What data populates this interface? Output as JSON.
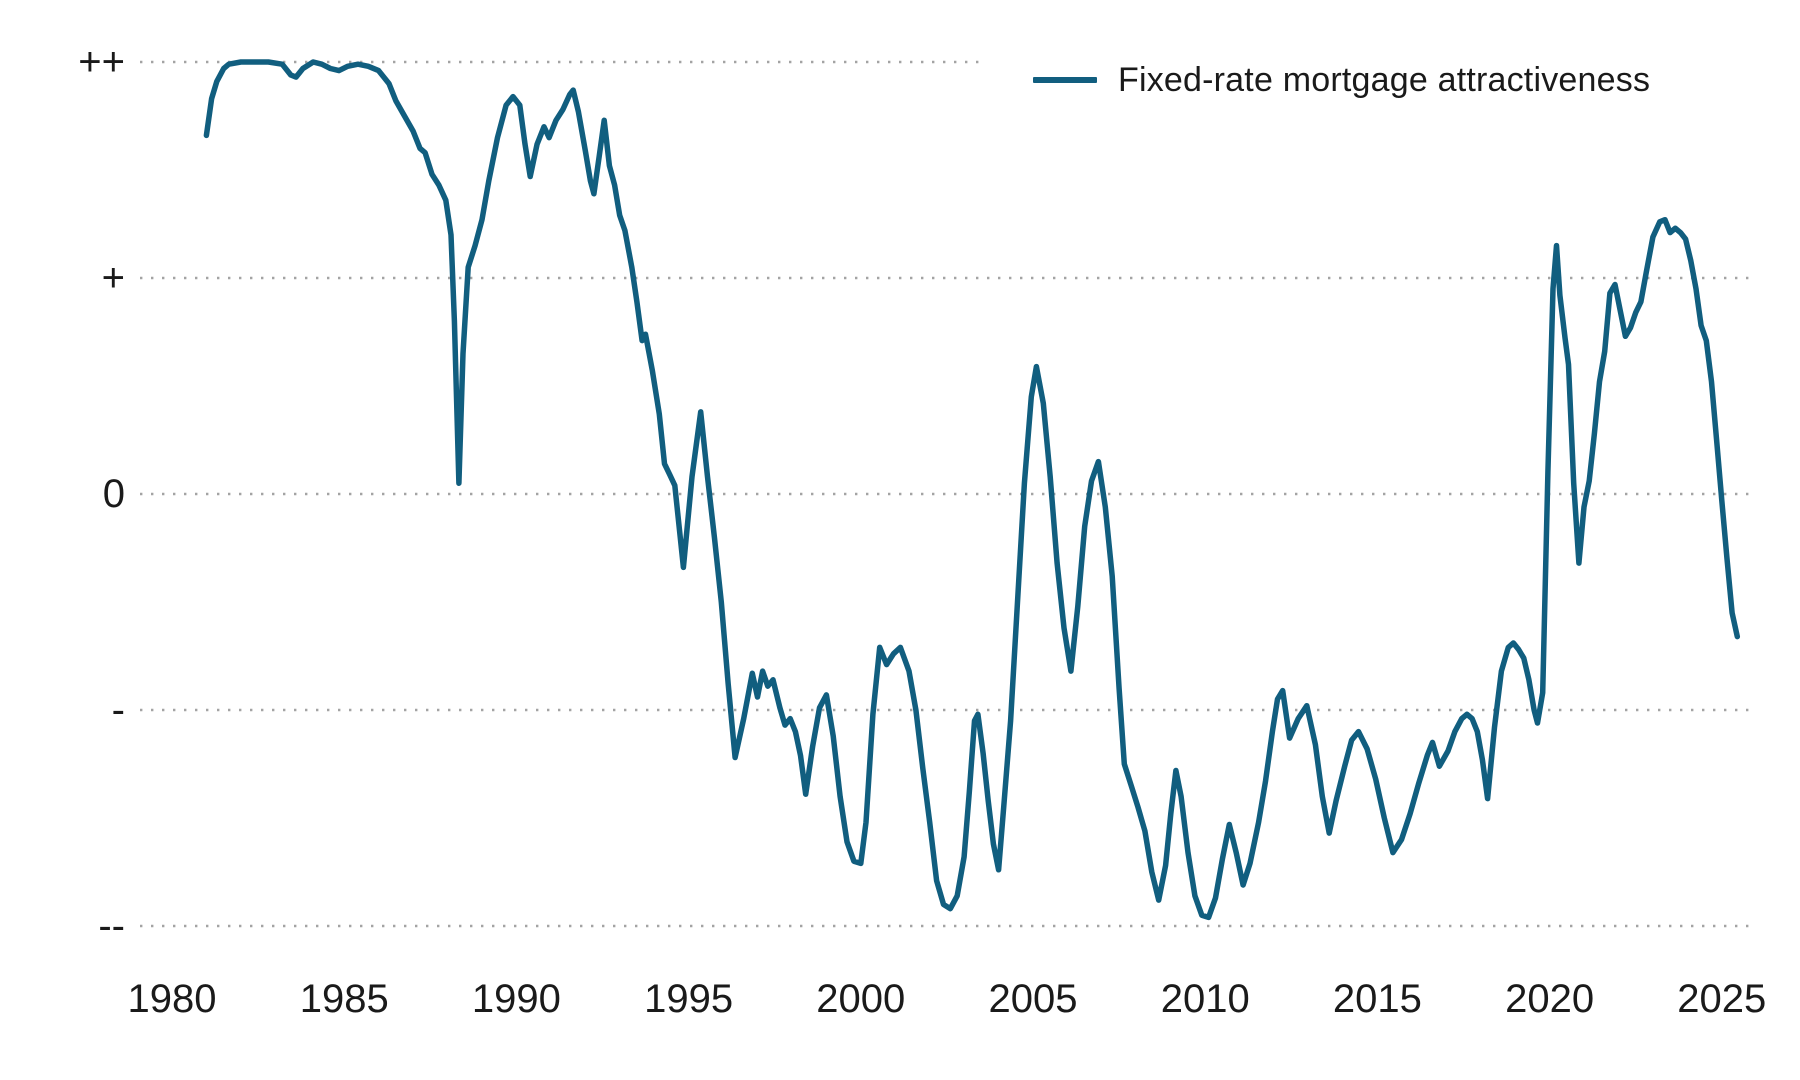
{
  "chart": {
    "legend": {
      "label": "Fixed-rate mortgage attractiveness"
    },
    "colors": {
      "line": "#115e7f",
      "grid": "#a3a3a3",
      "text": "#1a1a1a",
      "background": "#ffffff"
    }
  },
  "chart_data": {
    "type": "line",
    "title": "",
    "xlabel": "",
    "ylabel": "",
    "grid": "dotted horizontal gridlines",
    "legend_position": "top-right",
    "x_axis": {
      "ticks": [
        1980,
        1985,
        1990,
        1995,
        2000,
        2005,
        2010,
        2015,
        2020,
        2025
      ],
      "range": [
        1979.1,
        2026.1
      ]
    },
    "y_axis": {
      "type": "qualitative",
      "labels": [
        {
          "text": "++",
          "value": 2
        },
        {
          "text": "+",
          "value": 1
        },
        {
          "text": "0",
          "value": 0
        },
        {
          "text": "-",
          "value": -1
        },
        {
          "text": "--",
          "value": -2
        }
      ],
      "range": [
        -2.4,
        2.3
      ]
    },
    "series": [
      {
        "name": "Fixed-rate mortgage attractiveness",
        "color": "#115e7f",
        "points": [
          [
            1981.0,
            1.66
          ],
          [
            1981.15,
            1.83
          ],
          [
            1981.3,
            1.91
          ],
          [
            1981.5,
            1.97
          ],
          [
            1981.65,
            1.99
          ],
          [
            1982.0,
            2.0
          ],
          [
            1982.4,
            2.0
          ],
          [
            1982.8,
            2.0
          ],
          [
            1983.2,
            1.99
          ],
          [
            1983.45,
            1.94
          ],
          [
            1983.6,
            1.93
          ],
          [
            1983.8,
            1.97
          ],
          [
            1984.1,
            2.0
          ],
          [
            1984.35,
            1.99
          ],
          [
            1984.6,
            1.97
          ],
          [
            1984.85,
            1.96
          ],
          [
            1985.1,
            1.98
          ],
          [
            1985.4,
            1.99
          ],
          [
            1985.7,
            1.98
          ],
          [
            1986.0,
            1.96
          ],
          [
            1986.3,
            1.9
          ],
          [
            1986.5,
            1.82
          ],
          [
            1986.75,
            1.75
          ],
          [
            1987.0,
            1.68
          ],
          [
            1987.2,
            1.6
          ],
          [
            1987.35,
            1.58
          ],
          [
            1987.55,
            1.48
          ],
          [
            1987.75,
            1.43
          ],
          [
            1987.95,
            1.36
          ],
          [
            1988.1,
            1.2
          ],
          [
            1988.2,
            0.8
          ],
          [
            1988.33,
            0.05
          ],
          [
            1988.45,
            0.65
          ],
          [
            1988.6,
            1.05
          ],
          [
            1988.8,
            1.15
          ],
          [
            1989.0,
            1.27
          ],
          [
            1989.2,
            1.45
          ],
          [
            1989.45,
            1.65
          ],
          [
            1989.7,
            1.8
          ],
          [
            1989.9,
            1.84
          ],
          [
            1990.1,
            1.8
          ],
          [
            1990.25,
            1.62
          ],
          [
            1990.4,
            1.47
          ],
          [
            1990.6,
            1.62
          ],
          [
            1990.8,
            1.7
          ],
          [
            1990.95,
            1.65
          ],
          [
            1991.15,
            1.73
          ],
          [
            1991.35,
            1.78
          ],
          [
            1991.55,
            1.85
          ],
          [
            1991.65,
            1.87
          ],
          [
            1991.8,
            1.77
          ],
          [
            1992.0,
            1.59
          ],
          [
            1992.15,
            1.45
          ],
          [
            1992.25,
            1.39
          ],
          [
            1992.4,
            1.56
          ],
          [
            1992.55,
            1.73
          ],
          [
            1992.7,
            1.52
          ],
          [
            1992.85,
            1.43
          ],
          [
            1993.0,
            1.29
          ],
          [
            1993.15,
            1.22
          ],
          [
            1993.35,
            1.05
          ],
          [
            1993.5,
            0.89
          ],
          [
            1993.65,
            0.71
          ],
          [
            1993.75,
            0.74
          ],
          [
            1993.95,
            0.57
          ],
          [
            1994.15,
            0.37
          ],
          [
            1994.3,
            0.14
          ],
          [
            1994.45,
            0.09
          ],
          [
            1994.6,
            0.04
          ],
          [
            1994.85,
            -0.34
          ],
          [
            1995.1,
            0.08
          ],
          [
            1995.35,
            0.38
          ],
          [
            1995.55,
            0.08
          ],
          [
            1995.75,
            -0.2
          ],
          [
            1995.95,
            -0.5
          ],
          [
            1996.15,
            -0.88
          ],
          [
            1996.35,
            -1.22
          ],
          [
            1996.6,
            -1.04
          ],
          [
            1996.85,
            -0.83
          ],
          [
            1997.0,
            -0.94
          ],
          [
            1997.15,
            -0.82
          ],
          [
            1997.3,
            -0.89
          ],
          [
            1997.45,
            -0.86
          ],
          [
            1997.65,
            -0.99
          ],
          [
            1997.8,
            -1.07
          ],
          [
            1997.95,
            -1.04
          ],
          [
            1998.1,
            -1.1
          ],
          [
            1998.25,
            -1.21
          ],
          [
            1998.4,
            -1.39
          ],
          [
            1998.6,
            -1.17
          ],
          [
            1998.8,
            -0.99
          ],
          [
            1999.0,
            -0.93
          ],
          [
            1999.2,
            -1.12
          ],
          [
            1999.4,
            -1.4
          ],
          [
            1999.6,
            -1.61
          ],
          [
            1999.8,
            -1.7
          ],
          [
            2000.0,
            -1.71
          ],
          [
            2000.15,
            -1.52
          ],
          [
            2000.35,
            -1.02
          ],
          [
            2000.55,
            -0.71
          ],
          [
            2000.75,
            -0.79
          ],
          [
            2000.95,
            -0.74
          ],
          [
            2001.15,
            -0.71
          ],
          [
            2001.4,
            -0.82
          ],
          [
            2001.6,
            -1.0
          ],
          [
            2001.8,
            -1.27
          ],
          [
            2002.0,
            -1.52
          ],
          [
            2002.2,
            -1.79
          ],
          [
            2002.4,
            -1.9
          ],
          [
            2002.6,
            -1.92
          ],
          [
            2002.8,
            -1.86
          ],
          [
            2003.0,
            -1.68
          ],
          [
            2003.15,
            -1.38
          ],
          [
            2003.3,
            -1.05
          ],
          [
            2003.4,
            -1.02
          ],
          [
            2003.55,
            -1.2
          ],
          [
            2003.7,
            -1.42
          ],
          [
            2003.85,
            -1.62
          ],
          [
            2004.0,
            -1.74
          ],
          [
            2004.15,
            -1.45
          ],
          [
            2004.35,
            -1.05
          ],
          [
            2004.55,
            -0.5
          ],
          [
            2004.75,
            0.05
          ],
          [
            2004.95,
            0.45
          ],
          [
            2005.1,
            0.59
          ],
          [
            2005.3,
            0.42
          ],
          [
            2005.5,
            0.08
          ],
          [
            2005.7,
            -0.32
          ],
          [
            2005.9,
            -0.62
          ],
          [
            2006.1,
            -0.82
          ],
          [
            2006.3,
            -0.52
          ],
          [
            2006.5,
            -0.15
          ],
          [
            2006.7,
            0.06
          ],
          [
            2006.9,
            0.15
          ],
          [
            2007.1,
            -0.06
          ],
          [
            2007.3,
            -0.38
          ],
          [
            2007.5,
            -0.9
          ],
          [
            2007.65,
            -1.25
          ],
          [
            2007.85,
            -1.35
          ],
          [
            2008.05,
            -1.45
          ],
          [
            2008.25,
            -1.56
          ],
          [
            2008.45,
            -1.75
          ],
          [
            2008.65,
            -1.88
          ],
          [
            2008.85,
            -1.72
          ],
          [
            2009.0,
            -1.48
          ],
          [
            2009.15,
            -1.28
          ],
          [
            2009.3,
            -1.4
          ],
          [
            2009.5,
            -1.66
          ],
          [
            2009.7,
            -1.86
          ],
          [
            2009.9,
            -1.95
          ],
          [
            2010.1,
            -1.96
          ],
          [
            2010.3,
            -1.87
          ],
          [
            2010.5,
            -1.69
          ],
          [
            2010.7,
            -1.53
          ],
          [
            2010.9,
            -1.66
          ],
          [
            2011.1,
            -1.81
          ],
          [
            2011.3,
            -1.71
          ],
          [
            2011.55,
            -1.52
          ],
          [
            2011.75,
            -1.33
          ],
          [
            2011.95,
            -1.1
          ],
          [
            2012.1,
            -0.95
          ],
          [
            2012.25,
            -0.91
          ],
          [
            2012.45,
            -1.13
          ],
          [
            2012.7,
            -1.04
          ],
          [
            2012.95,
            -0.98
          ],
          [
            2013.2,
            -1.16
          ],
          [
            2013.4,
            -1.4
          ],
          [
            2013.6,
            -1.57
          ],
          [
            2013.8,
            -1.42
          ],
          [
            2014.05,
            -1.26
          ],
          [
            2014.25,
            -1.14
          ],
          [
            2014.45,
            -1.1
          ],
          [
            2014.7,
            -1.18
          ],
          [
            2014.95,
            -1.32
          ],
          [
            2015.2,
            -1.5
          ],
          [
            2015.45,
            -1.66
          ],
          [
            2015.7,
            -1.6
          ],
          [
            2015.95,
            -1.48
          ],
          [
            2016.2,
            -1.34
          ],
          [
            2016.45,
            -1.21
          ],
          [
            2016.6,
            -1.15
          ],
          [
            2016.8,
            -1.26
          ],
          [
            2017.05,
            -1.19
          ],
          [
            2017.25,
            -1.1
          ],
          [
            2017.45,
            -1.04
          ],
          [
            2017.6,
            -1.02
          ],
          [
            2017.75,
            -1.04
          ],
          [
            2017.9,
            -1.1
          ],
          [
            2018.05,
            -1.23
          ],
          [
            2018.2,
            -1.41
          ],
          [
            2018.4,
            -1.08
          ],
          [
            2018.6,
            -0.82
          ],
          [
            2018.8,
            -0.71
          ],
          [
            2018.95,
            -0.69
          ],
          [
            2019.1,
            -0.72
          ],
          [
            2019.25,
            -0.76
          ],
          [
            2019.4,
            -0.86
          ],
          [
            2019.55,
            -1.0
          ],
          [
            2019.65,
            -1.06
          ],
          [
            2019.8,
            -0.92
          ],
          [
            2019.95,
            0.1
          ],
          [
            2020.1,
            0.95
          ],
          [
            2020.2,
            1.15
          ],
          [
            2020.3,
            0.92
          ],
          [
            2020.45,
            0.72
          ],
          [
            2020.55,
            0.6
          ],
          [
            2020.7,
            0.05
          ],
          [
            2020.85,
            -0.32
          ],
          [
            2021.0,
            -0.06
          ],
          [
            2021.15,
            0.06
          ],
          [
            2021.3,
            0.28
          ],
          [
            2021.45,
            0.52
          ],
          [
            2021.6,
            0.66
          ],
          [
            2021.75,
            0.93
          ],
          [
            2021.9,
            0.97
          ],
          [
            2022.05,
            0.85
          ],
          [
            2022.2,
            0.73
          ],
          [
            2022.35,
            0.77
          ],
          [
            2022.5,
            0.84
          ],
          [
            2022.65,
            0.89
          ],
          [
            2022.8,
            1.02
          ],
          [
            2023.0,
            1.19
          ],
          [
            2023.2,
            1.26
          ],
          [
            2023.35,
            1.27
          ],
          [
            2023.5,
            1.21
          ],
          [
            2023.65,
            1.23
          ],
          [
            2023.8,
            1.21
          ],
          [
            2023.95,
            1.18
          ],
          [
            2024.1,
            1.08
          ],
          [
            2024.25,
            0.95
          ],
          [
            2024.4,
            0.78
          ],
          [
            2024.55,
            0.71
          ],
          [
            2024.7,
            0.52
          ],
          [
            2024.85,
            0.25
          ],
          [
            2025.0,
            -0.03
          ],
          [
            2025.15,
            -0.3
          ],
          [
            2025.3,
            -0.55
          ],
          [
            2025.45,
            -0.66
          ]
        ]
      }
    ]
  }
}
